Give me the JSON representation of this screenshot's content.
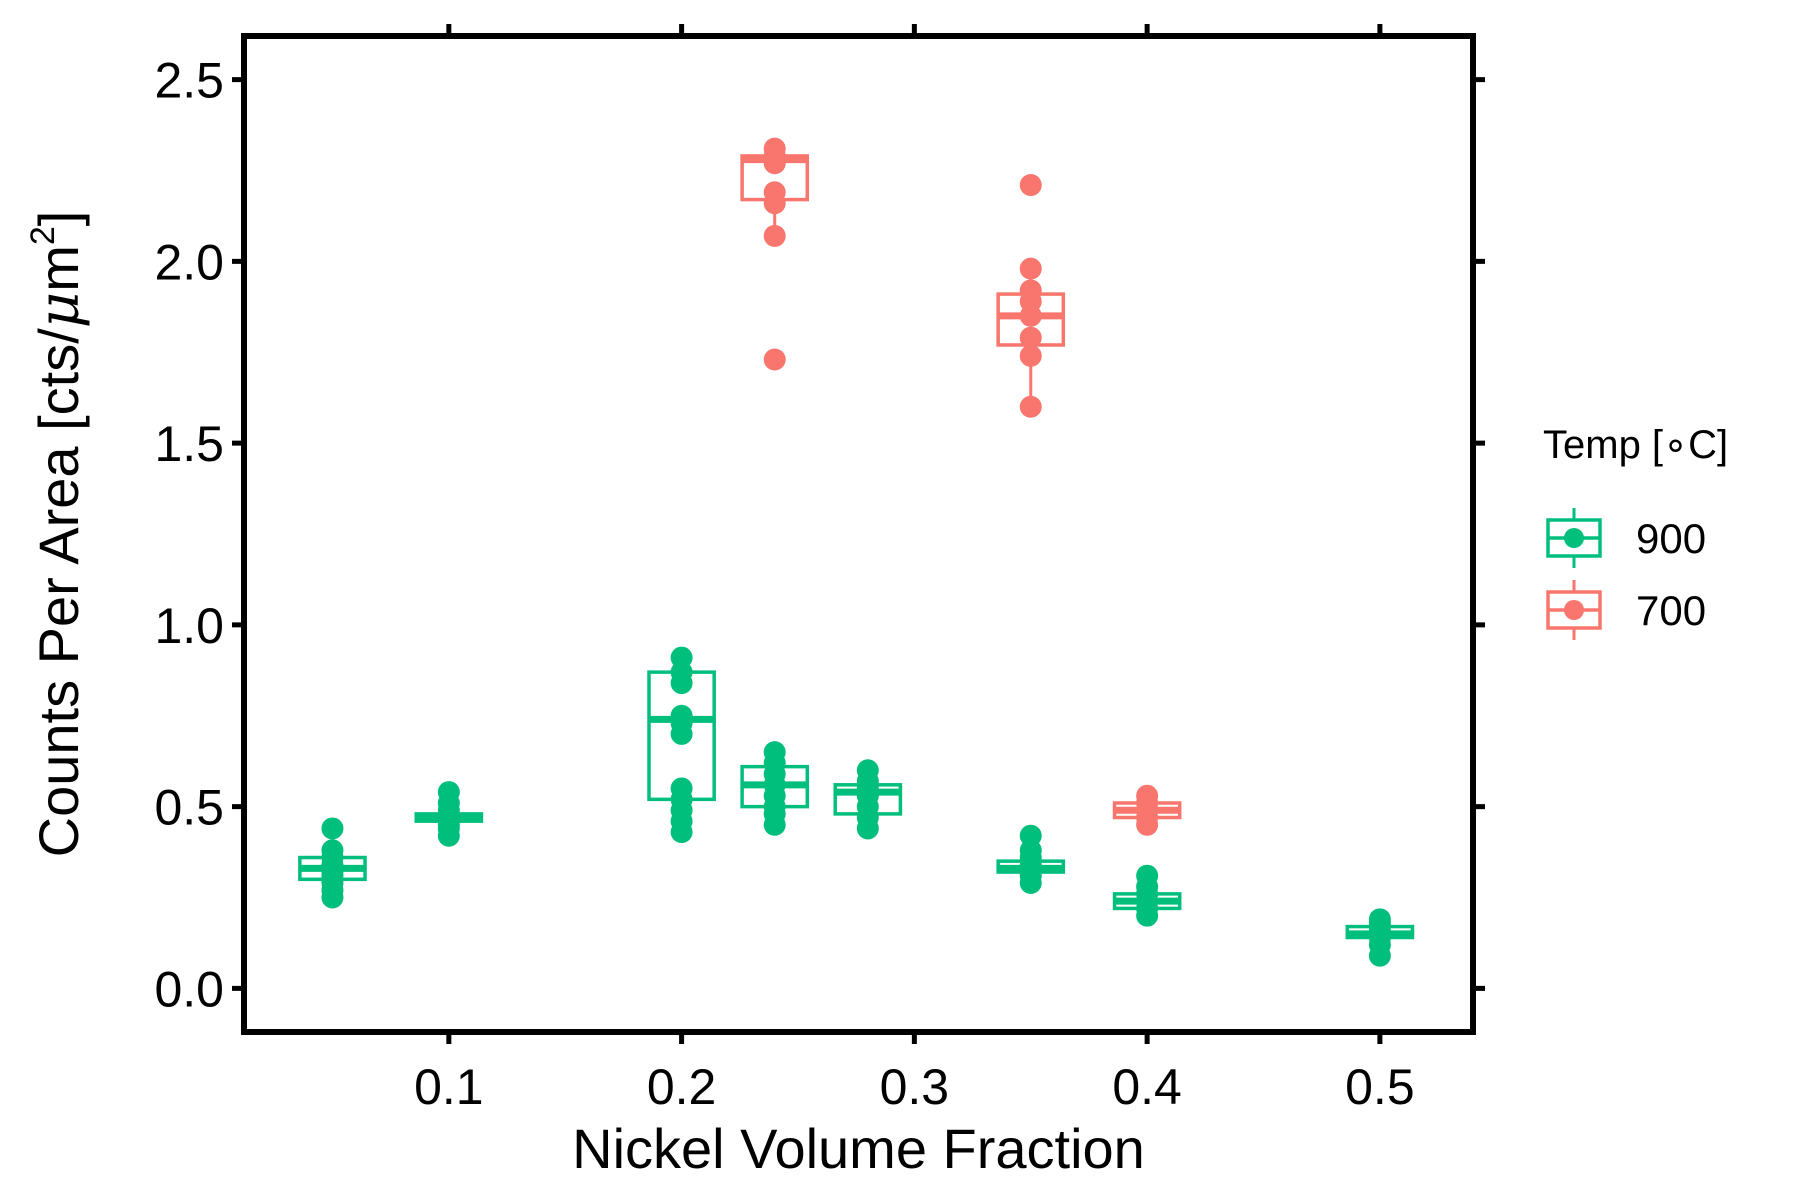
{
  "chart_data": {
    "type": "boxplot",
    "xlabel": "Nickel Volume Fraction",
    "ylabel_prefix": "Counts Per Area [cts/",
    "ylabel_mu": "μ",
    "ylabel_unit": "m",
    "ylabel_sup": "2",
    "ylabel_suffix": "]",
    "xlim": [
      0.012,
      0.54
    ],
    "ylim": [
      -0.12,
      2.62
    ],
    "x_ticks": [
      0.1,
      0.2,
      0.3,
      0.4,
      0.5
    ],
    "x_tick_labels": [
      "0.1",
      "0.2",
      "0.3",
      "0.4",
      "0.5"
    ],
    "y_ticks": [
      0.0,
      0.5,
      1.0,
      1.5,
      2.0,
      2.5
    ],
    "y_tick_labels": [
      "0.0",
      "0.5",
      "1.0",
      "1.5",
      "2.0",
      "2.5"
    ],
    "box_width": 0.028,
    "legend": {
      "title_prefix": "Temp [",
      "title_degree": "∘",
      "title_suffix": "C]",
      "placement": "right"
    },
    "series": [
      {
        "name": "900",
        "color": "#00BF7D",
        "groups": [
          {
            "x": 0.05,
            "min": 0.27,
            "q1": 0.3,
            "median": 0.33,
            "q3": 0.36,
            "max": 0.41,
            "points": [
              0.25,
              0.27,
              0.29,
              0.31,
              0.32,
              0.33,
              0.34,
              0.36,
              0.38,
              0.44
            ]
          },
          {
            "x": 0.1,
            "min": 0.44,
            "q1": 0.46,
            "median": 0.47,
            "q3": 0.48,
            "max": 0.5,
            "points": [
              0.42,
              0.44,
              0.45,
              0.46,
              0.47,
              0.48,
              0.49,
              0.51,
              0.54
            ]
          },
          {
            "x": 0.2,
            "min": 0.45,
            "q1": 0.52,
            "median": 0.74,
            "q3": 0.87,
            "max": 0.91,
            "points": [
              0.43,
              0.46,
              0.49,
              0.52,
              0.55,
              0.7,
              0.73,
              0.75,
              0.84,
              0.87,
              0.91
            ]
          },
          {
            "x": 0.24,
            "min": 0.46,
            "q1": 0.5,
            "median": 0.56,
            "q3": 0.61,
            "max": 0.66,
            "points": [
              0.45,
              0.48,
              0.5,
              0.53,
              0.56,
              0.59,
              0.62,
              0.65
            ]
          },
          {
            "x": 0.28,
            "min": 0.45,
            "q1": 0.48,
            "median": 0.54,
            "q3": 0.56,
            "max": 0.6,
            "points": [
              0.44,
              0.47,
              0.5,
              0.53,
              0.55,
              0.57,
              0.6
            ]
          },
          {
            "x": 0.35,
            "min": 0.3,
            "q1": 0.32,
            "median": 0.33,
            "q3": 0.35,
            "max": 0.38,
            "points": [
              0.29,
              0.31,
              0.33,
              0.34,
              0.36,
              0.38,
              0.42
            ]
          },
          {
            "x": 0.4,
            "min": 0.21,
            "q1": 0.22,
            "median": 0.24,
            "q3": 0.26,
            "max": 0.28,
            "points": [
              0.2,
              0.22,
              0.24,
              0.26,
              0.28,
              0.31
            ]
          },
          {
            "x": 0.5,
            "min": 0.12,
            "q1": 0.14,
            "median": 0.15,
            "q3": 0.17,
            "max": 0.18,
            "points": [
              0.09,
              0.12,
              0.14,
              0.16,
              0.18,
              0.19
            ]
          }
        ]
      },
      {
        "name": "700",
        "color": "#F8766D",
        "groups": [
          {
            "x": 0.24,
            "min": 2.1,
            "q1": 2.17,
            "median": 2.28,
            "q3": 2.29,
            "max": 2.31,
            "points": [
              1.73,
              2.07,
              2.16,
              2.19,
              2.27,
              2.29,
              2.31
            ]
          },
          {
            "x": 0.35,
            "min": 1.62,
            "q1": 1.77,
            "median": 1.85,
            "q3": 1.91,
            "max": 1.96,
            "points": [
              1.6,
              1.74,
              1.79,
              1.85,
              1.89,
              1.92,
              1.98,
              2.21
            ]
          },
          {
            "x": 0.4,
            "min": 0.46,
            "q1": 0.47,
            "median": 0.49,
            "q3": 0.51,
            "max": 0.52,
            "points": [
              0.45,
              0.47,
              0.49,
              0.51,
              0.53
            ]
          }
        ]
      }
    ]
  }
}
